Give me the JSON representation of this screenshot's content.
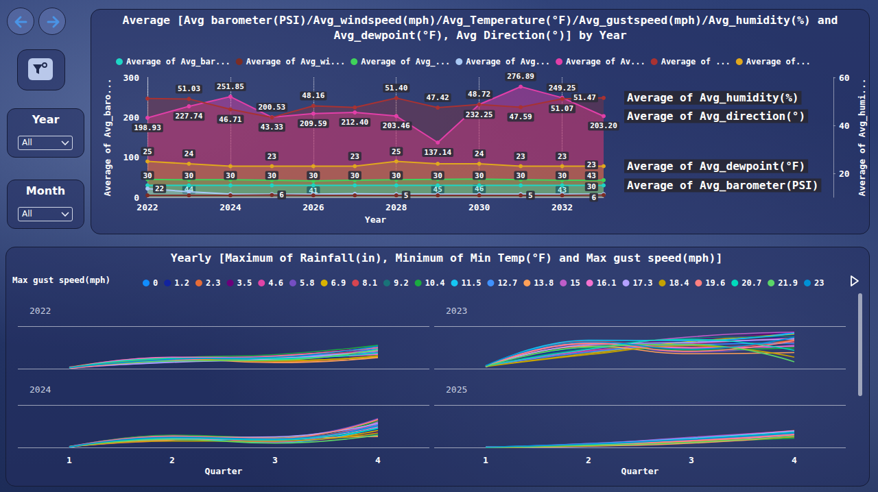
{
  "page": {
    "slicers": [
      {
        "label": "Year",
        "value": "All"
      },
      {
        "label": "Month",
        "value": "All"
      }
    ]
  },
  "chart_data": [
    {
      "type": "area",
      "title": "Average [Avg barometer(PSI)/Avg_windspeed(mph)/Avg_Temperature(°F)/Avg_gustspeed(mph)/Avg_humidity(%) and Avg_dewpoint(°F), Avg Direction(°)] by Year",
      "x_label": "Year",
      "y_label": "Average of Avg_baro...",
      "y2_label": "Average of Avg_humi...",
      "x": [
        2022,
        2023,
        2024,
        2025,
        2026,
        2027,
        2028,
        2029,
        2030,
        2031,
        2032,
        2033
      ],
      "xlim": [
        2022,
        2033
      ],
      "xticks": [
        2022,
        2024,
        2026,
        2028,
        2030,
        2032
      ],
      "ylim": [
        0,
        300
      ],
      "yticks": [
        0,
        100,
        200,
        300
      ],
      "y2lim": [
        10,
        60
      ],
      "y2ticks": [
        20,
        40,
        60
      ],
      "grid": "x",
      "legend": "top",
      "data_labels": true,
      "marker": "circle",
      "series": [
        {
          "name": "Average of Avg_bar...",
          "color": "#1ED6C5",
          "end_label": "Average of Avg_barometer(PSI)",
          "values": [
            30,
            30,
            30,
            30,
            30,
            30,
            30,
            30,
            30,
            30,
            30,
            30
          ],
          "value_labels": [
            "30",
            "30",
            "30",
            "30",
            "30",
            "30",
            "30",
            "30",
            "30",
            "30",
            "30",
            "30"
          ]
        },
        {
          "name": "Average of Avg_wi...",
          "color": "#7B2D26",
          "values": [
            5,
            5,
            5,
            6,
            5,
            5,
            5,
            5,
            5,
            5,
            5,
            6
          ],
          "value_labels": [
            null,
            null,
            null,
            "6",
            null,
            null,
            "5",
            null,
            null,
            "5",
            null,
            "6"
          ]
        },
        {
          "name": "Average of Avg_...",
          "color": "#3FD35A",
          "values": [
            45,
            44,
            44,
            43,
            41,
            43,
            44,
            45,
            46,
            44,
            43,
            43
          ],
          "value_labels": [
            null,
            "44",
            null,
            null,
            "41",
            null,
            null,
            "45",
            "46",
            null,
            "43",
            "43"
          ]
        },
        {
          "name": "Average of Avg...",
          "color": "#A9C9F5",
          "values": [
            22,
            14,
            8,
            8,
            8,
            9,
            8,
            8,
            8,
            8,
            8,
            8
          ],
          "value_labels": [
            "22",
            null,
            null,
            null,
            null,
            null,
            null,
            null,
            null,
            null,
            null,
            null
          ]
        },
        {
          "name": "Average of Av...",
          "color": "#E23FA8",
          "end_label": "Average of Avg_direction(°)",
          "values": [
            198.93,
            227.74,
            251.85,
            200.53,
            209.59,
            212.4,
            203.46,
            137.14,
            232.25,
            276.89,
            249.25,
            203.2
          ],
          "value_labels": [
            "198.93",
            "227.74",
            "251.85",
            "200.53",
            "209.59",
            "212.40",
            "203.46",
            "137.14",
            "232.25",
            "276.89",
            "249.25",
            "203.20"
          ]
        },
        {
          "name": "Average of ...",
          "color": "#A83232",
          "axis": "y2",
          "end_label": "Average of Avg_humidity(%)",
          "values": [
            51.2,
            51.03,
            46.71,
            43.33,
            48.16,
            47.5,
            51.4,
            47.42,
            48.72,
            47.59,
            51.07,
            51.47
          ],
          "value_labels": [
            null,
            "51.03",
            "46.71",
            "43.33",
            "48.16",
            null,
            "51.40",
            "47.42",
            "48.72",
            "47.59",
            "51.07",
            "51.47"
          ]
        },
        {
          "name": "Average of...",
          "color": "#E0A81E",
          "axis": "y2",
          "end_label": "Average of Avg_dewpoint(°F)",
          "values": [
            25,
            24,
            23,
            23,
            23,
            23,
            25,
            24,
            24,
            23,
            23,
            23
          ],
          "value_labels": [
            "25",
            "24",
            null,
            "23",
            null,
            "23",
            "25",
            null,
            "24",
            "23",
            "23",
            "23"
          ]
        }
      ]
    },
    {
      "type": "line",
      "title": "Yearly [Maximum of Rainfall(in), Minimum of Min Temp(°F) and Max gust speed(mph)]",
      "legend_title": "Max gust speed(mph)",
      "x_label": "Quarter",
      "categories": [
        "1",
        "2",
        "3",
        "4"
      ],
      "ylim": [
        0,
        10
      ],
      "yticks": [
        0,
        10
      ],
      "grid": "y",
      "tick_labels": "x",
      "legend": "top",
      "series": [
        {
          "name": "0",
          "color": "#118DFF"
        },
        {
          "name": "1.2",
          "color": "#12239E"
        },
        {
          "name": "2.3",
          "color": "#E66C37"
        },
        {
          "name": "3.5",
          "color": "#6B007B"
        },
        {
          "name": "4.6",
          "color": "#E044A7"
        },
        {
          "name": "5.8",
          "color": "#744EC2"
        },
        {
          "name": "6.9",
          "color": "#D9B300"
        },
        {
          "name": "8.1",
          "color": "#D64550"
        },
        {
          "name": "9.2",
          "color": "#197278"
        },
        {
          "name": "10.4",
          "color": "#1AAB40"
        },
        {
          "name": "11.5",
          "color": "#15C6F4"
        },
        {
          "name": "12.7",
          "color": "#4092FF"
        },
        {
          "name": "13.8",
          "color": "#FFA058"
        },
        {
          "name": "15",
          "color": "#BE5DC9"
        },
        {
          "name": "16.1",
          "color": "#F472D0"
        },
        {
          "name": "17.3",
          "color": "#B5A1FF"
        },
        {
          "name": "18.4",
          "color": "#C4A200"
        },
        {
          "name": "19.6",
          "color": "#FF8080"
        },
        {
          "name": "20.7",
          "color": "#00DBBC"
        },
        {
          "name": "21.9",
          "color": "#5BD667"
        },
        {
          "name": "23",
          "color": "#0091D5"
        }
      ],
      "panels": [
        {
          "title": "2022",
          "values": [
            [
              0.2,
              2.1,
              2.4,
              4.8
            ],
            [
              0.1,
              1.8,
              2.0,
              3.9
            ],
            [
              0.3,
              2.6,
              1.6,
              3.1
            ],
            [
              0.2,
              2.3,
              3.1,
              5.2
            ],
            [
              0.4,
              2.0,
              2.7,
              4.4
            ],
            [
              0.1,
              1.6,
              2.2,
              3.6
            ],
            [
              0.2,
              2.4,
              1.9,
              2.8
            ],
            [
              0.3,
              2.2,
              2.9,
              4.1
            ],
            [
              0.2,
              1.9,
              2.5,
              3.3
            ],
            [
              0.1,
              2.5,
              3.3,
              5.5
            ],
            [
              0.2,
              2.0,
              2.1,
              4.6
            ],
            [
              0.3,
              1.7,
              2.8,
              3.8
            ],
            [
              0.2,
              2.3,
              1.4,
              2.6
            ],
            [
              0.1,
              2.1,
              3.0,
              4.9
            ],
            [
              0.2,
              2.7,
              2.6,
              3.4
            ],
            [
              0.3,
              1.5,
              2.3,
              4.2
            ],
            [
              0.2,
              2.2,
              1.8,
              3.0
            ],
            [
              0.1,
              2.0,
              2.9,
              5.0
            ],
            [
              0.2,
              2.4,
              2.4,
              3.7
            ],
            [
              0.3,
              1.8,
              2.0,
              4.5
            ],
            [
              0.2,
              2.2,
              2.7,
              5.3
            ]
          ]
        },
        {
          "title": "2023",
          "values": [
            [
              0.5,
              5.2,
              6.1,
              8.5
            ],
            [
              0.4,
              4.8,
              5.3,
              7.9
            ],
            [
              0.6,
              6.1,
              4.7,
              6.8
            ],
            [
              0.5,
              5.5,
              6.8,
              8.7
            ],
            [
              0.7,
              4.2,
              5.9,
              7.2
            ],
            [
              0.4,
              5.8,
              3.9,
              5.6
            ],
            [
              0.6,
              3.6,
              6.4,
              8.1
            ],
            [
              0.5,
              6.4,
              5.0,
              6.3
            ],
            [
              0.8,
              4.9,
              7.2,
              7.6
            ],
            [
              0.4,
              5.0,
              4.4,
              4.9
            ],
            [
              0.5,
              6.7,
              6.6,
              8.3
            ],
            [
              0.6,
              3.9,
              5.6,
              6.0
            ],
            [
              0.5,
              5.3,
              3.5,
              3.8
            ],
            [
              0.7,
              4.5,
              7.5,
              8.6
            ],
            [
              0.4,
              6.0,
              4.9,
              5.3
            ],
            [
              0.6,
              5.6,
              6.2,
              7.0
            ],
            [
              0.5,
              3.3,
              5.4,
              2.7
            ],
            [
              0.4,
              5.9,
              4.1,
              6.6
            ],
            [
              0.6,
              4.6,
              6.9,
              4.3
            ],
            [
              0.5,
              5.1,
              5.7,
              1.6
            ],
            [
              0.7,
              6.3,
              4.6,
              7.4
            ]
          ]
        },
        {
          "title": "2024",
          "values": [
            [
              0.1,
              2.5,
              1.8,
              5.9
            ],
            [
              0.2,
              1.9,
              1.5,
              4.3
            ],
            [
              0.1,
              2.8,
              2.2,
              6.5
            ],
            [
              0.1,
              2.2,
              1.2,
              3.6
            ],
            [
              0.2,
              1.6,
              1.9,
              5.2
            ],
            [
              0.1,
              2.6,
              2.4,
              6.8
            ],
            [
              0.1,
              2.0,
              1.4,
              4.0
            ],
            [
              0.2,
              2.3,
              2.0,
              5.6
            ],
            [
              0.1,
              1.7,
              1.6,
              3.1
            ],
            [
              0.1,
              2.9,
              2.3,
              6.2
            ],
            [
              0.2,
              2.1,
              1.1,
              4.7
            ],
            [
              0.1,
              2.4,
              1.7,
              5.4
            ],
            [
              0.1,
              1.8,
              2.1,
              2.6
            ],
            [
              0.2,
              2.7,
              1.3,
              6.0
            ],
            [
              0.1,
              2.0,
              1.9,
              4.9
            ],
            [
              0.1,
              2.3,
              2.5,
              5.7
            ],
            [
              0.2,
              1.5,
              1.5,
              3.4
            ],
            [
              0.1,
              2.6,
              2.2,
              6.6
            ],
            [
              0.1,
              2.2,
              1.8,
              4.5
            ],
            [
              0.2,
              1.9,
              1.0,
              2.9
            ],
            [
              0.1,
              2.4,
              2.0,
              5.1
            ]
          ]
        },
        {
          "title": "2025",
          "values": [
            [
              0.0,
              0.6,
              1.8,
              3.6
            ],
            [
              0.0,
              0.4,
              1.3,
              2.8
            ],
            [
              0.1,
              0.8,
              2.2,
              4.0
            ],
            [
              0.0,
              0.5,
              1.6,
              3.2
            ],
            [
              0.0,
              0.9,
              2.4,
              3.9
            ],
            [
              0.1,
              0.3,
              1.1,
              2.4
            ],
            [
              0.0,
              0.7,
              1.9,
              3.4
            ],
            [
              0.0,
              0.5,
              1.5,
              2.9
            ],
            [
              0.1,
              0.8,
              2.0,
              3.7
            ],
            [
              0.0,
              0.4,
              1.2,
              2.2
            ],
            [
              0.0,
              0.6,
              1.7,
              3.3
            ],
            [
              0.1,
              0.9,
              2.3,
              3.8
            ],
            [
              0.0,
              0.3,
              1.0,
              2.6
            ],
            [
              0.0,
              0.7,
              1.8,
              3.5
            ],
            [
              0.1,
              0.5,
              1.4,
              3.0
            ],
            [
              0.0,
              0.8,
              2.1,
              3.9
            ],
            [
              0.0,
              0.4,
              1.3,
              2.5
            ],
            [
              0.1,
              0.6,
              1.6,
              3.1
            ],
            [
              0.0,
              0.7,
              2.0,
              3.6
            ],
            [
              0.0,
              0.5,
              1.2,
              2.7
            ],
            [
              0.1,
              0.8,
              1.9,
              3.4
            ]
          ]
        }
      ]
    }
  ]
}
